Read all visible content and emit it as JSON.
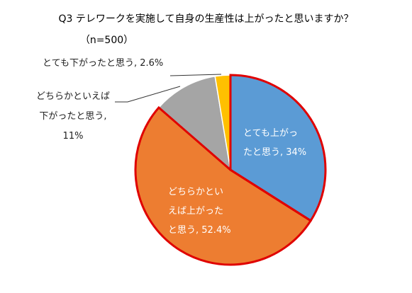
{
  "chart_data": {
    "type": "pie",
    "title": "Q3 テレワークを実施して自身の生産性は上がったと思いますか？",
    "subtitle": "（n=500）",
    "slices": [
      {
        "label": "とても上がったと思う",
        "value": 34,
        "value_label": "34%",
        "color": "#5B9BD5"
      },
      {
        "label": "どちらかといえば上がったと思う",
        "value": 52.4,
        "value_label": "52.4%",
        "color": "#ED7D31"
      },
      {
        "label": "どちらかといえば下がったと思う",
        "value": 11,
        "value_label": "11%",
        "color": "#A5A5A5"
      },
      {
        "label": "とても下がったと思う",
        "value": 2.6,
        "value_label": "2.6%",
        "color": "#FFC000"
      }
    ],
    "highlight_color": "#E00000",
    "slice_label_lines": [
      [
        "とても上がっ",
        "たと思う, 34%"
      ],
      [
        "どちらかとい",
        "えば上がった",
        "と思う, 52.4%"
      ],
      [
        "どちらかといえば",
        "下がったと思う,",
        "11%"
      ],
      [
        "とても下がったと思う, 2.6%"
      ]
    ]
  }
}
